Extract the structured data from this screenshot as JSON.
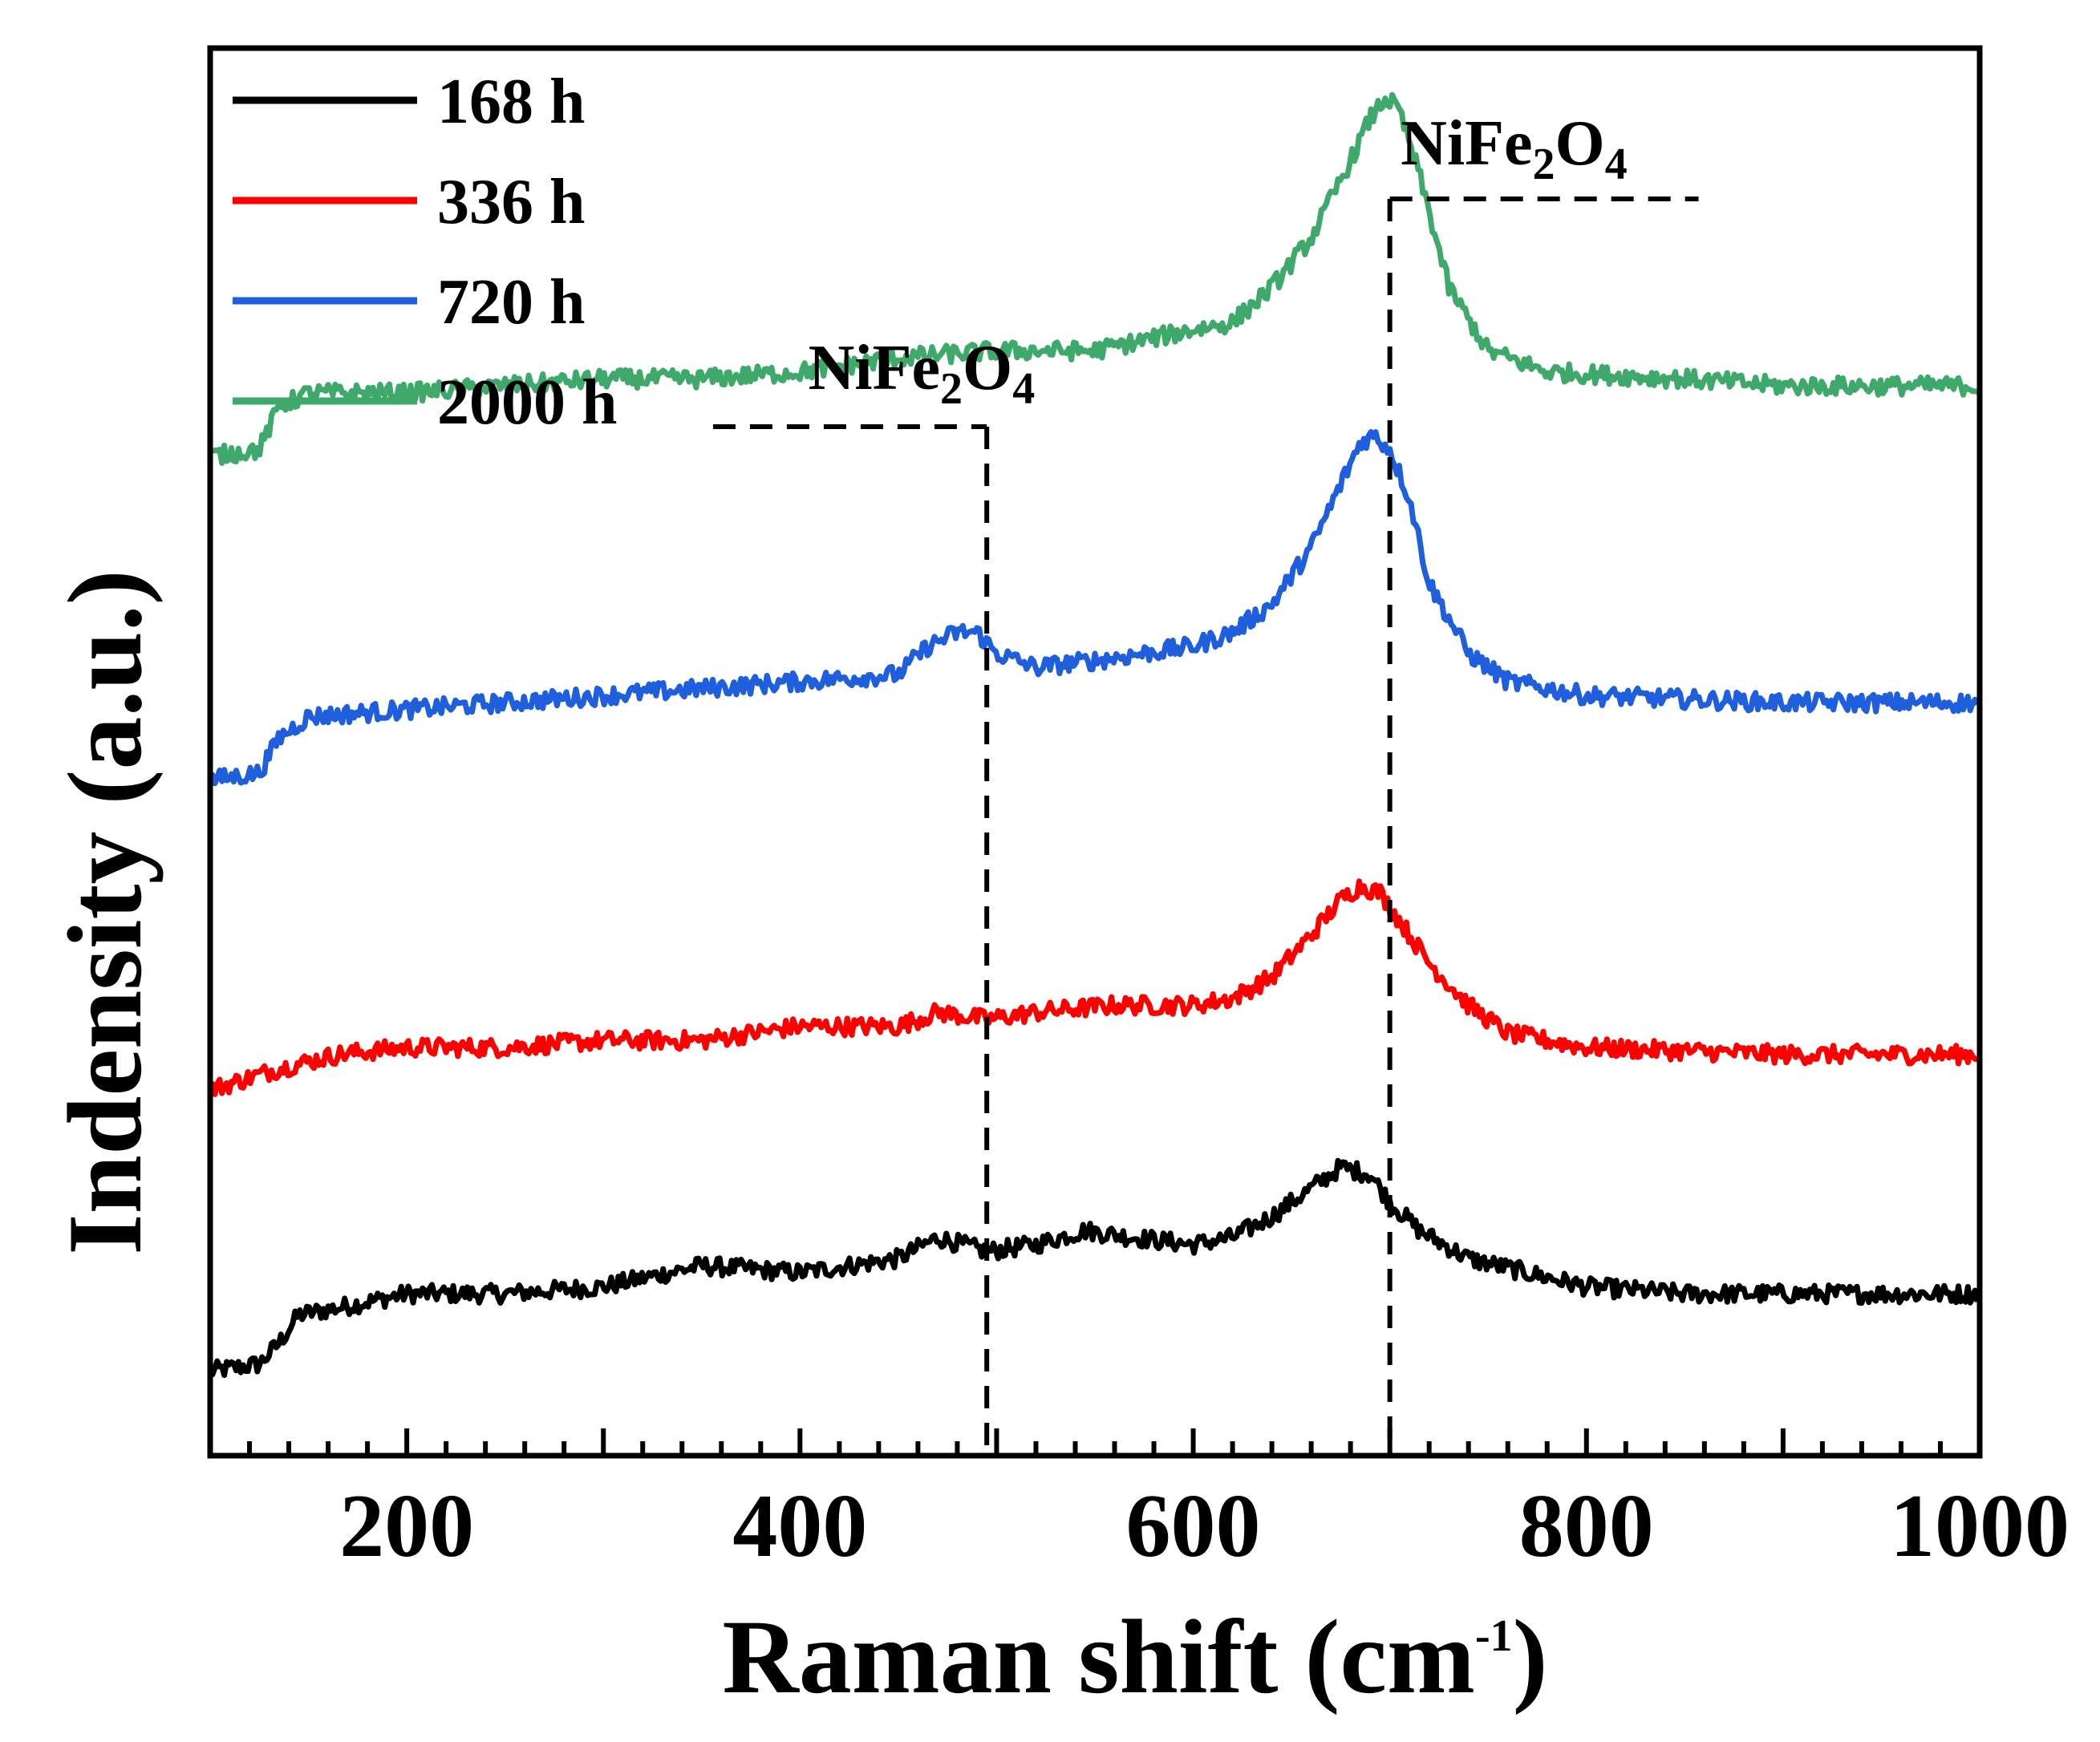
{
  "chart_data": {
    "type": "line",
    "title": "",
    "xlabel": "Raman shift (cm",
    "xlabel_sup": "-1",
    "xlabel_close": ")",
    "ylabel": "Indensity (a.u.)",
    "xlim": [
      100,
      1000
    ],
    "ylim": [
      0,
      100
    ],
    "x_ticks": [
      200,
      400,
      600,
      800,
      1000
    ],
    "y_ticks_shown": false,
    "legend_position": "top-left",
    "series": [
      {
        "name": "168 h",
        "color": "#000000",
        "offset": 5,
        "points": [
          [
            100,
            2
          ],
          [
            125,
            3
          ],
          [
            135,
            6
          ],
          [
            145,
            10
          ],
          [
            165,
            11
          ],
          [
            200,
            13
          ],
          [
            250,
            13
          ],
          [
            300,
            14
          ],
          [
            350,
            17
          ],
          [
            400,
            16
          ],
          [
            450,
            18
          ],
          [
            470,
            21
          ],
          [
            495,
            19
          ],
          [
            520,
            20
          ],
          [
            545,
            22
          ],
          [
            570,
            21
          ],
          [
            600,
            20
          ],
          [
            620,
            21
          ],
          [
            640,
            24
          ],
          [
            660,
            28
          ],
          [
            675,
            31
          ],
          [
            690,
            30
          ],
          [
            700,
            26
          ],
          [
            715,
            22
          ],
          [
            740,
            18
          ],
          [
            770,
            16
          ],
          [
            800,
            14
          ],
          [
            850,
            13
          ],
          [
            900,
            13
          ],
          [
            950,
            13
          ],
          [
            1000,
            13
          ]
        ]
      },
      {
        "name": "336 h",
        "color": "#ff0000",
        "offset": 26,
        "points": [
          [
            100,
            0
          ],
          [
            135,
            3
          ],
          [
            165,
            5
          ],
          [
            200,
            6
          ],
          [
            250,
            6
          ],
          [
            300,
            7
          ],
          [
            350,
            7
          ],
          [
            400,
            9
          ],
          [
            450,
            9
          ],
          [
            470,
            11
          ],
          [
            495,
            10
          ],
          [
            520,
            11
          ],
          [
            560,
            12
          ],
          [
            600,
            12
          ],
          [
            620,
            13
          ],
          [
            640,
            16
          ],
          [
            660,
            22
          ],
          [
            675,
            27
          ],
          [
            685,
            29
          ],
          [
            695,
            28
          ],
          [
            705,
            24
          ],
          [
            720,
            18
          ],
          [
            740,
            12
          ],
          [
            760,
            8
          ],
          [
            800,
            6
          ],
          [
            900,
            5
          ],
          [
            1000,
            5
          ]
        ]
      },
      {
        "name": "720 h",
        "color": "#1f5fde",
        "offset": 48,
        "points": [
          [
            100,
            0
          ],
          [
            125,
            1
          ],
          [
            135,
            6
          ],
          [
            150,
            9
          ],
          [
            200,
            10
          ],
          [
            250,
            11
          ],
          [
            300,
            12
          ],
          [
            350,
            13
          ],
          [
            400,
            14
          ],
          [
            450,
            15
          ],
          [
            465,
            19
          ],
          [
            480,
            21
          ],
          [
            490,
            21
          ],
          [
            500,
            18
          ],
          [
            520,
            16
          ],
          [
            550,
            17
          ],
          [
            600,
            19
          ],
          [
            620,
            21
          ],
          [
            640,
            25
          ],
          [
            660,
            33
          ],
          [
            675,
            42
          ],
          [
            685,
            48
          ],
          [
            692,
            49
          ],
          [
            700,
            47
          ],
          [
            710,
            40
          ],
          [
            720,
            28
          ],
          [
            740,
            18
          ],
          [
            760,
            14
          ],
          [
            800,
            12
          ],
          [
            900,
            11
          ],
          [
            1000,
            11
          ]
        ]
      },
      {
        "name": "2000 h",
        "color": "#3ea96a",
        "offset": 71,
        "points": [
          [
            100,
            0
          ],
          [
            125,
            1
          ],
          [
            135,
            7
          ],
          [
            150,
            9
          ],
          [
            200,
            9
          ],
          [
            250,
            10
          ],
          [
            300,
            11
          ],
          [
            350,
            11
          ],
          [
            400,
            12
          ],
          [
            450,
            14
          ],
          [
            500,
            15
          ],
          [
            550,
            15
          ],
          [
            600,
            18
          ],
          [
            620,
            19
          ],
          [
            640,
            24
          ],
          [
            660,
            31
          ],
          [
            680,
            42
          ],
          [
            690,
            48
          ],
          [
            698,
            51
          ],
          [
            705,
            49
          ],
          [
            715,
            40
          ],
          [
            730,
            24
          ],
          [
            750,
            15
          ],
          [
            780,
            12
          ],
          [
            850,
            11
          ],
          [
            900,
            10
          ],
          [
            1000,
            10
          ]
        ]
      }
    ],
    "annotations": [
      {
        "text": "NiFe",
        "sub": "2",
        "text2": "O",
        "sub2": "4",
        "x": 495,
        "style": "bracket-left",
        "label_x": 470
      },
      {
        "text": "NiFe",
        "sub": "2",
        "text2": "O",
        "sub2": "4",
        "x": 700,
        "style": "bracket-right",
        "label_x": 755
      }
    ]
  }
}
